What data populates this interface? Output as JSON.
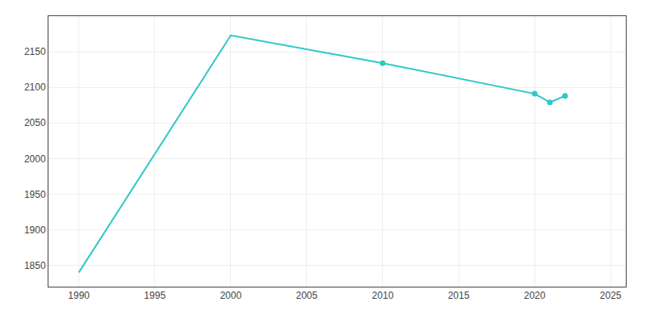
{
  "chart_data": {
    "type": "line",
    "x": [
      1990,
      2000,
      2010,
      2020,
      2021,
      2022
    ],
    "series": [
      {
        "type": "line",
        "color": "#2ec8c8",
        "line_style": "solid",
        "marker": "none",
        "values": [
          1840,
          2173,
          2134,
          2091,
          2079,
          2088
        ]
      },
      {
        "type": "scatter",
        "color": "#2ec8c8",
        "line_style": "none",
        "marker": "circle",
        "values": [
          null,
          null,
          2134,
          2091,
          2079,
          2088
        ]
      }
    ],
    "xlim": [
      1988,
      2026
    ],
    "ylim": [
      1820,
      2200
    ],
    "xticks": [
      1990,
      1995,
      2000,
      2005,
      2010,
      2015,
      2020,
      2025
    ],
    "yticks": [
      1850,
      1900,
      1950,
      2000,
      2050,
      2100,
      2150
    ],
    "grid": true
  }
}
